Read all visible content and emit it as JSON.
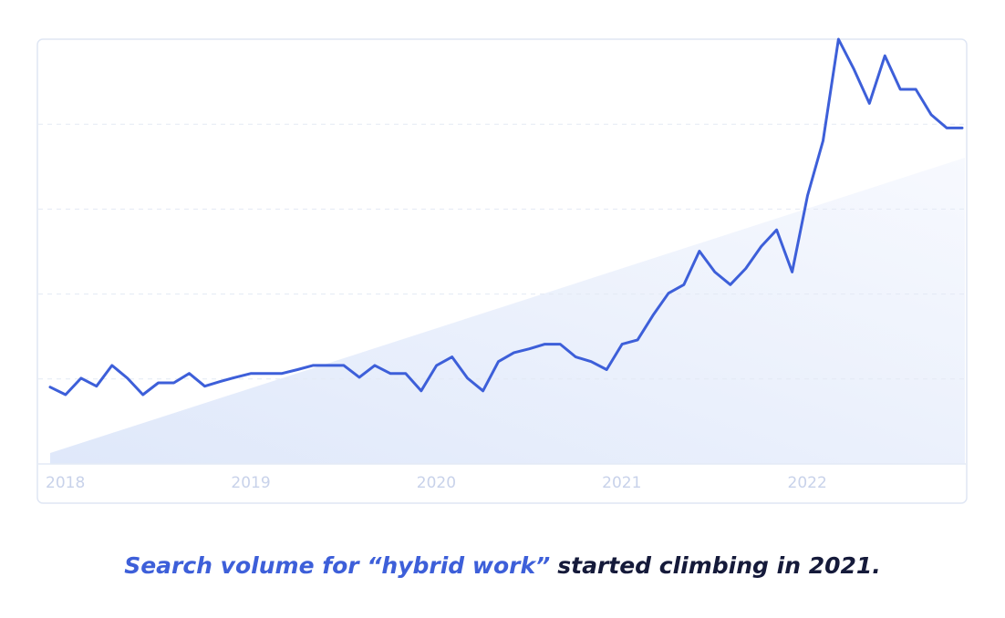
{
  "chart_data": {
    "type": "line",
    "categories": [
      "2018",
      null,
      null,
      null,
      null,
      null,
      null,
      null,
      null,
      null,
      null,
      null,
      "2019",
      null,
      null,
      null,
      null,
      null,
      null,
      null,
      null,
      null,
      null,
      null,
      "2020",
      null,
      null,
      null,
      null,
      null,
      null,
      null,
      null,
      null,
      null,
      null,
      "2021",
      null,
      null,
      null,
      null,
      null,
      null,
      null,
      null,
      null,
      null,
      null,
      "2022",
      null,
      null,
      null,
      null,
      null,
      null,
      null,
      null,
      null,
      null,
      null
    ],
    "values": [
      18.1,
      16.3,
      20.2,
      18.3,
      23.2,
      20.2,
      16.3,
      19.1,
      19.1,
      21.3,
      18.3,
      19.4,
      20.4,
      21.3,
      21.3,
      21.3,
      22.2,
      23.2,
      23.2,
      23.2,
      20.4,
      23.2,
      21.3,
      21.3,
      17.2,
      23.2,
      25.2,
      20.2,
      17.2,
      24.1,
      26.2,
      27.1,
      28.2,
      28.2,
      25.2,
      24.1,
      22.2,
      28.2,
      29.2,
      35,
      40.2,
      42.2,
      50.1,
      45.2,
      42.2,
      46,
      51.2,
      55.1,
      45.2,
      63.2,
      76.1,
      100,
      92.9,
      84.9,
      96.1,
      88.2,
      88.2,
      82.2,
      79.1,
      79.1
    ],
    "color": "#3d5fd9",
    "ylim": [
      0,
      100
    ],
    "gridlines": [
      20,
      40,
      60,
      80
    ],
    "caption": {
      "highlight": "Search volume for “hybrid work”",
      "rest": "started climbing in 2021."
    }
  }
}
